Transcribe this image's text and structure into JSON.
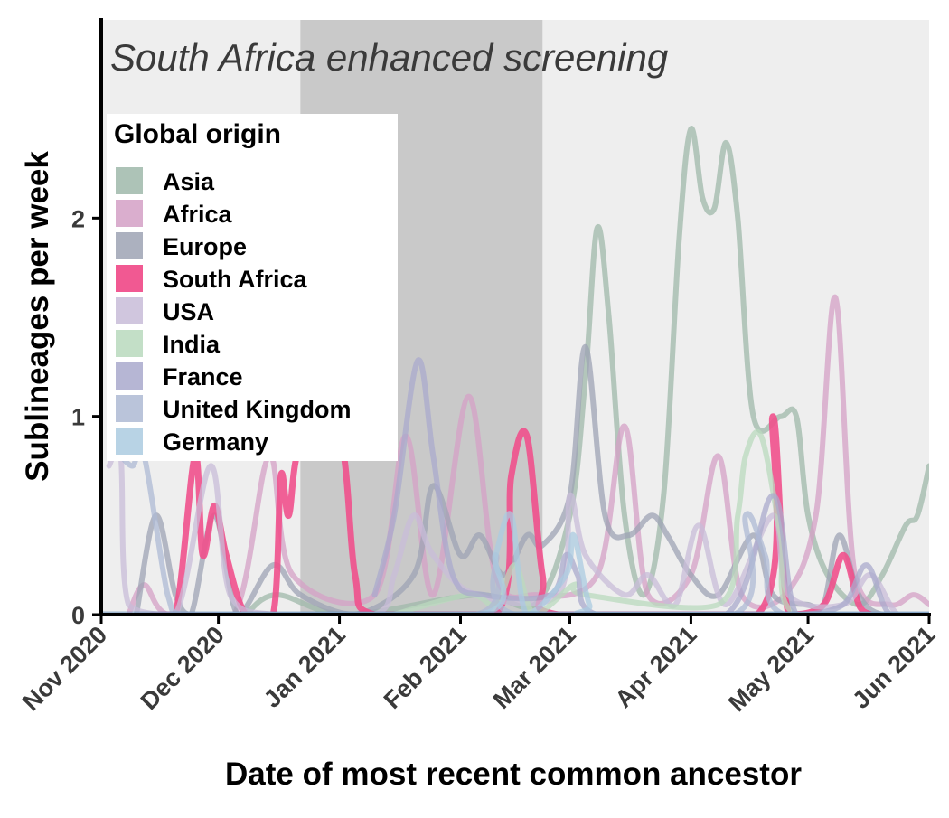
{
  "chart_data": {
    "type": "line",
    "panel_title": "South Africa enhanced screening",
    "xlabel": "Date of most recent common ancestor",
    "ylabel": "Sublineages per week",
    "x_ticks": [
      "Nov 2020",
      "Dec 2020",
      "Jan 2021",
      "Feb 2021",
      "Mar 2021",
      "Apr 2021",
      "May 2021",
      "Jun 2021"
    ],
    "xlim": [
      "2020-11-01",
      "2021-06-01"
    ],
    "ylim": [
      0,
      3.0
    ],
    "y_ticks": [
      0,
      1,
      2
    ],
    "shaded_period": [
      "2020-12-22",
      "2021-02-22"
    ],
    "legend": {
      "title": "Global origin",
      "position": "top-left"
    },
    "series": [
      {
        "name": "Asia",
        "color": "#9fb8aa",
        "points": [
          [
            "2020-12-08",
            0
          ],
          [
            "2020-12-16",
            0.1
          ],
          [
            "2021-01-03",
            0
          ],
          [
            "2021-02-05",
            0.1
          ],
          [
            "2021-02-20",
            0.05
          ],
          [
            "2021-03-01",
            0.5
          ],
          [
            "2021-03-05",
            1.2
          ],
          [
            "2021-03-08",
            1.95
          ],
          [
            "2021-03-11",
            1.5
          ],
          [
            "2021-03-15",
            0.5
          ],
          [
            "2021-03-20",
            0.1
          ],
          [
            "2021-03-25",
            0.6
          ],
          [
            "2021-03-29",
            1.9
          ],
          [
            "2021-04-01",
            2.45
          ],
          [
            "2021-04-04",
            2.1
          ],
          [
            "2021-04-07",
            2.05
          ],
          [
            "2021-04-10",
            2.38
          ],
          [
            "2021-04-13",
            2.0
          ],
          [
            "2021-04-17",
            1.0
          ],
          [
            "2021-04-24",
            1.0
          ],
          [
            "2021-04-28",
            1.0
          ],
          [
            "2021-05-01",
            0.5
          ],
          [
            "2021-05-06",
            0.2
          ],
          [
            "2021-05-14",
            0.05
          ],
          [
            "2021-05-20",
            0.2
          ],
          [
            "2021-05-26",
            0.45
          ],
          [
            "2021-05-29",
            0.5
          ],
          [
            "2021-06-01",
            0.75
          ]
        ]
      },
      {
        "name": "Africa",
        "color": "#d4a0c6",
        "points": [
          [
            "2020-11-08",
            0
          ],
          [
            "2020-11-12",
            0.15
          ],
          [
            "2020-11-18",
            0
          ],
          [
            "2020-12-05",
            0
          ],
          [
            "2020-12-14",
            0.8
          ],
          [
            "2020-12-20",
            0.2
          ],
          [
            "2021-01-10",
            0.1
          ],
          [
            "2021-01-18",
            0.9
          ],
          [
            "2021-01-25",
            0.1
          ],
          [
            "2021-02-03",
            1.1
          ],
          [
            "2021-02-10",
            0.2
          ],
          [
            "2021-02-20",
            0.1
          ],
          [
            "2021-03-08",
            0.2
          ],
          [
            "2021-03-15",
            0.95
          ],
          [
            "2021-03-21",
            0.1
          ],
          [
            "2021-04-01",
            0.2
          ],
          [
            "2021-04-08",
            0.8
          ],
          [
            "2021-04-14",
            0.1
          ],
          [
            "2021-04-25",
            0.1
          ],
          [
            "2021-05-03",
            0.5
          ],
          [
            "2021-05-08",
            1.6
          ],
          [
            "2021-05-13",
            0.2
          ],
          [
            "2021-05-22",
            0.05
          ],
          [
            "2021-05-28",
            0.1
          ],
          [
            "2021-06-01",
            0.05
          ]
        ]
      },
      {
        "name": "Europe",
        "color": "#9ea3b4",
        "points": [
          [
            "2020-11-10",
            0
          ],
          [
            "2020-11-15",
            0.5
          ],
          [
            "2020-11-20",
            0.1
          ],
          [
            "2020-11-24",
            0
          ],
          [
            "2020-11-30",
            0.5
          ],
          [
            "2020-12-06",
            0
          ],
          [
            "2020-12-15",
            0.25
          ],
          [
            "2020-12-22",
            0.1
          ],
          [
            "2021-01-05",
            0
          ],
          [
            "2021-01-20",
            0.2
          ],
          [
            "2021-01-25",
            0.65
          ],
          [
            "2021-02-01",
            0.3
          ],
          [
            "2021-02-06",
            0.4
          ],
          [
            "2021-02-12",
            0.2
          ],
          [
            "2021-02-18",
            0.4
          ],
          [
            "2021-02-22",
            0.35
          ],
          [
            "2021-03-01",
            0.6
          ],
          [
            "2021-03-05",
            1.35
          ],
          [
            "2021-03-10",
            0.5
          ],
          [
            "2021-03-16",
            0.4
          ],
          [
            "2021-03-22",
            0.5
          ],
          [
            "2021-03-26",
            0.4
          ],
          [
            "2021-04-01",
            0.2
          ],
          [
            "2021-04-08",
            0.1
          ],
          [
            "2021-04-17",
            0.4
          ],
          [
            "2021-04-22",
            0.1
          ],
          [
            "2021-05-01",
            0.05
          ],
          [
            "2021-05-05",
            0.05
          ],
          [
            "2021-05-09",
            0.4
          ],
          [
            "2021-05-14",
            0.1
          ],
          [
            "2021-05-20",
            0
          ],
          [
            "2021-06-01",
            0
          ]
        ]
      },
      {
        "name": "South Africa",
        "color": "#f0508c",
        "points": [
          [
            "2020-11-14",
            0
          ],
          [
            "2020-11-20",
            0
          ],
          [
            "2020-11-25",
            0.8
          ],
          [
            "2020-11-27",
            0.3
          ],
          [
            "2020-11-30",
            0.55
          ],
          [
            "2020-12-03",
            0.3
          ],
          [
            "2020-12-08",
            0
          ],
          [
            "2020-12-15",
            0
          ],
          [
            "2020-12-17",
            0.7
          ],
          [
            "2020-12-19",
            0.5
          ],
          [
            "2020-12-22",
            0.85
          ],
          [
            "2021-01-01",
            0.9
          ],
          [
            "2021-01-05",
            0.2
          ],
          [
            "2021-01-10",
            0
          ],
          [
            "2021-02-10",
            0
          ],
          [
            "2021-02-14",
            0.7
          ],
          [
            "2021-02-18",
            0.9
          ],
          [
            "2021-02-22",
            0.2
          ],
          [
            "2021-02-26",
            0
          ],
          [
            "2021-04-18",
            0
          ],
          [
            "2021-04-22",
            1.0
          ],
          [
            "2021-04-26",
            0
          ],
          [
            "2021-05-05",
            0.05
          ],
          [
            "2021-05-10",
            0.3
          ],
          [
            "2021-05-14",
            0.05
          ],
          [
            "2021-05-17",
            0
          ]
        ]
      },
      {
        "name": "USA",
        "color": "#c8bcd8",
        "points": [
          [
            "2020-11-03",
            0.75
          ],
          [
            "2020-11-06",
            0.8
          ],
          [
            "2020-11-08",
            0.05
          ],
          [
            "2020-11-20",
            0
          ],
          [
            "2020-11-29",
            0.75
          ],
          [
            "2020-12-04",
            0.1
          ],
          [
            "2020-12-15",
            0
          ],
          [
            "2021-01-10",
            0
          ],
          [
            "2021-01-15",
            0.2
          ],
          [
            "2021-01-20",
            0.5
          ],
          [
            "2021-01-25",
            0.3
          ],
          [
            "2021-02-05",
            0.1
          ],
          [
            "2021-02-26",
            0.1
          ],
          [
            "2021-03-01",
            0.6
          ],
          [
            "2021-03-05",
            0.3
          ],
          [
            "2021-03-15",
            0.1
          ],
          [
            "2021-03-21",
            0.2
          ],
          [
            "2021-03-28",
            0.05
          ],
          [
            "2021-04-03",
            0.45
          ],
          [
            "2021-04-10",
            0.05
          ],
          [
            "2021-04-22",
            0.5
          ],
          [
            "2021-04-26",
            0.1
          ],
          [
            "2021-05-10",
            0.05
          ],
          [
            "2021-05-17",
            0.2
          ],
          [
            "2021-05-24",
            0
          ],
          [
            "2021-06-01",
            0
          ]
        ]
      },
      {
        "name": "India",
        "color": "#b9d9bd",
        "points": [
          [
            "2021-01-15",
            0
          ],
          [
            "2021-02-03",
            0.1
          ],
          [
            "2021-02-10",
            0.05
          ],
          [
            "2021-02-15",
            0.25
          ],
          [
            "2021-02-20",
            0
          ],
          [
            "2021-03-02",
            0.15
          ],
          [
            "2021-03-05",
            0.1
          ],
          [
            "2021-04-08",
            0.05
          ],
          [
            "2021-04-13",
            0.5
          ],
          [
            "2021-04-15",
            0.8
          ],
          [
            "2021-04-19",
            0.9
          ],
          [
            "2021-04-24",
            0.4
          ],
          [
            "2021-04-28",
            0
          ],
          [
            "2021-06-01",
            0
          ]
        ]
      },
      {
        "name": "France",
        "color": "#a9a9cc",
        "points": [
          [
            "2021-01-10",
            0.1
          ],
          [
            "2021-01-15",
            0.5
          ],
          [
            "2021-01-21",
            1.28
          ],
          [
            "2021-01-25",
            0.8
          ],
          [
            "2021-01-30",
            0.2
          ],
          [
            "2021-02-07",
            0.1
          ],
          [
            "2021-02-24",
            0.1
          ],
          [
            "2021-02-28",
            0.3
          ],
          [
            "2021-03-03",
            0.2
          ],
          [
            "2021-03-08",
            0
          ],
          [
            "2021-04-10",
            0
          ],
          [
            "2021-04-22",
            0.6
          ],
          [
            "2021-04-28",
            0
          ],
          [
            "2021-05-10",
            0.05
          ],
          [
            "2021-05-16",
            0.25
          ],
          [
            "2021-05-22",
            0
          ],
          [
            "2021-06-01",
            0
          ]
        ]
      },
      {
        "name": "United Kingdom",
        "color": "#aebad4",
        "points": [
          [
            "2020-11-06",
            0.8
          ],
          [
            "2020-11-09",
            0.75
          ],
          [
            "2020-11-12",
            0.8
          ],
          [
            "2020-11-18",
            0.1
          ],
          [
            "2020-11-22",
            0
          ],
          [
            "2020-12-10",
            0
          ],
          [
            "2021-02-05",
            0
          ],
          [
            "2021-02-10",
            0.3
          ],
          [
            "2021-02-15",
            0
          ],
          [
            "2021-04-12",
            0
          ],
          [
            "2021-04-15",
            0.5
          ],
          [
            "2021-04-20",
            0.3
          ],
          [
            "2021-04-25",
            0
          ],
          [
            "2021-06-01",
            0
          ]
        ]
      },
      {
        "name": "Germany",
        "color": "#abcbe0",
        "points": [
          [
            "2020-12-01",
            0
          ],
          [
            "2021-02-06",
            0
          ],
          [
            "2021-02-10",
            0.3
          ],
          [
            "2021-02-14",
            0.5
          ],
          [
            "2021-02-18",
            0
          ],
          [
            "2021-02-28",
            0.2
          ],
          [
            "2021-03-02",
            0.4
          ],
          [
            "2021-03-06",
            0.05
          ],
          [
            "2021-03-10",
            0
          ],
          [
            "2021-06-01",
            0
          ]
        ]
      }
    ]
  }
}
